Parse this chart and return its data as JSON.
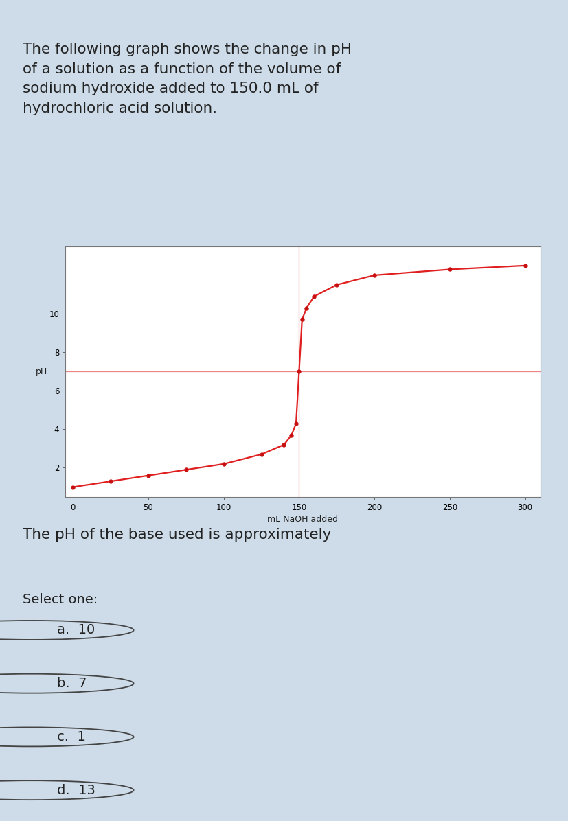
{
  "header_text": "The following graph shows the change in pH\nof a solution as a function of the volume of\nsodium hydroxide added to 150.0 mL of\nhydrochloric acid solution.",
  "question_text": "The pH of the base used is approximately",
  "select_one_text": "Select one:",
  "choices": [
    {
      "label": "a.",
      "value": "10"
    },
    {
      "label": "b.",
      "value": "7"
    },
    {
      "label": "c.",
      "value": "1"
    },
    {
      "label": "d.",
      "value": "13"
    }
  ],
  "xlabel": "mL NaOH added",
  "ylabel": "pH",
  "x_data": [
    0,
    25,
    50,
    75,
    100,
    125,
    140,
    145,
    148,
    150,
    152,
    155,
    160,
    175,
    200,
    250,
    300
  ],
  "y_data": [
    1.0,
    1.3,
    1.6,
    1.9,
    2.2,
    2.7,
    3.2,
    3.7,
    4.3,
    7.0,
    9.7,
    10.3,
    10.9,
    11.5,
    12.0,
    12.3,
    12.5
  ],
  "line_color": "#e02020",
  "marker_color": "#c81010",
  "marker_size": 4,
  "line_width": 1.6,
  "hline_y": 7.0,
  "hline_color": "#e02020",
  "hline_alpha": 0.55,
  "vline_x": 150,
  "vline_color": "#e02020",
  "vline_alpha": 0.55,
  "xlim": [
    -5,
    310
  ],
  "ylim": [
    0.5,
    13.5
  ],
  "xticks": [
    0,
    50,
    100,
    150,
    200,
    250,
    300
  ],
  "yticks": [
    2,
    4,
    6,
    8,
    10
  ],
  "plot_bg_color": "#ffffff",
  "outer_bg_color": "#cddce8",
  "graph_panel_color": "#e8edf0",
  "text_color": "#222222",
  "header_fontsize": 15.5,
  "axis_label_fontsize": 9,
  "tick_fontsize": 8.5,
  "question_fontsize": 15.5,
  "select_fontsize": 14,
  "choice_fontsize": 14,
  "radio_color": "#444444"
}
